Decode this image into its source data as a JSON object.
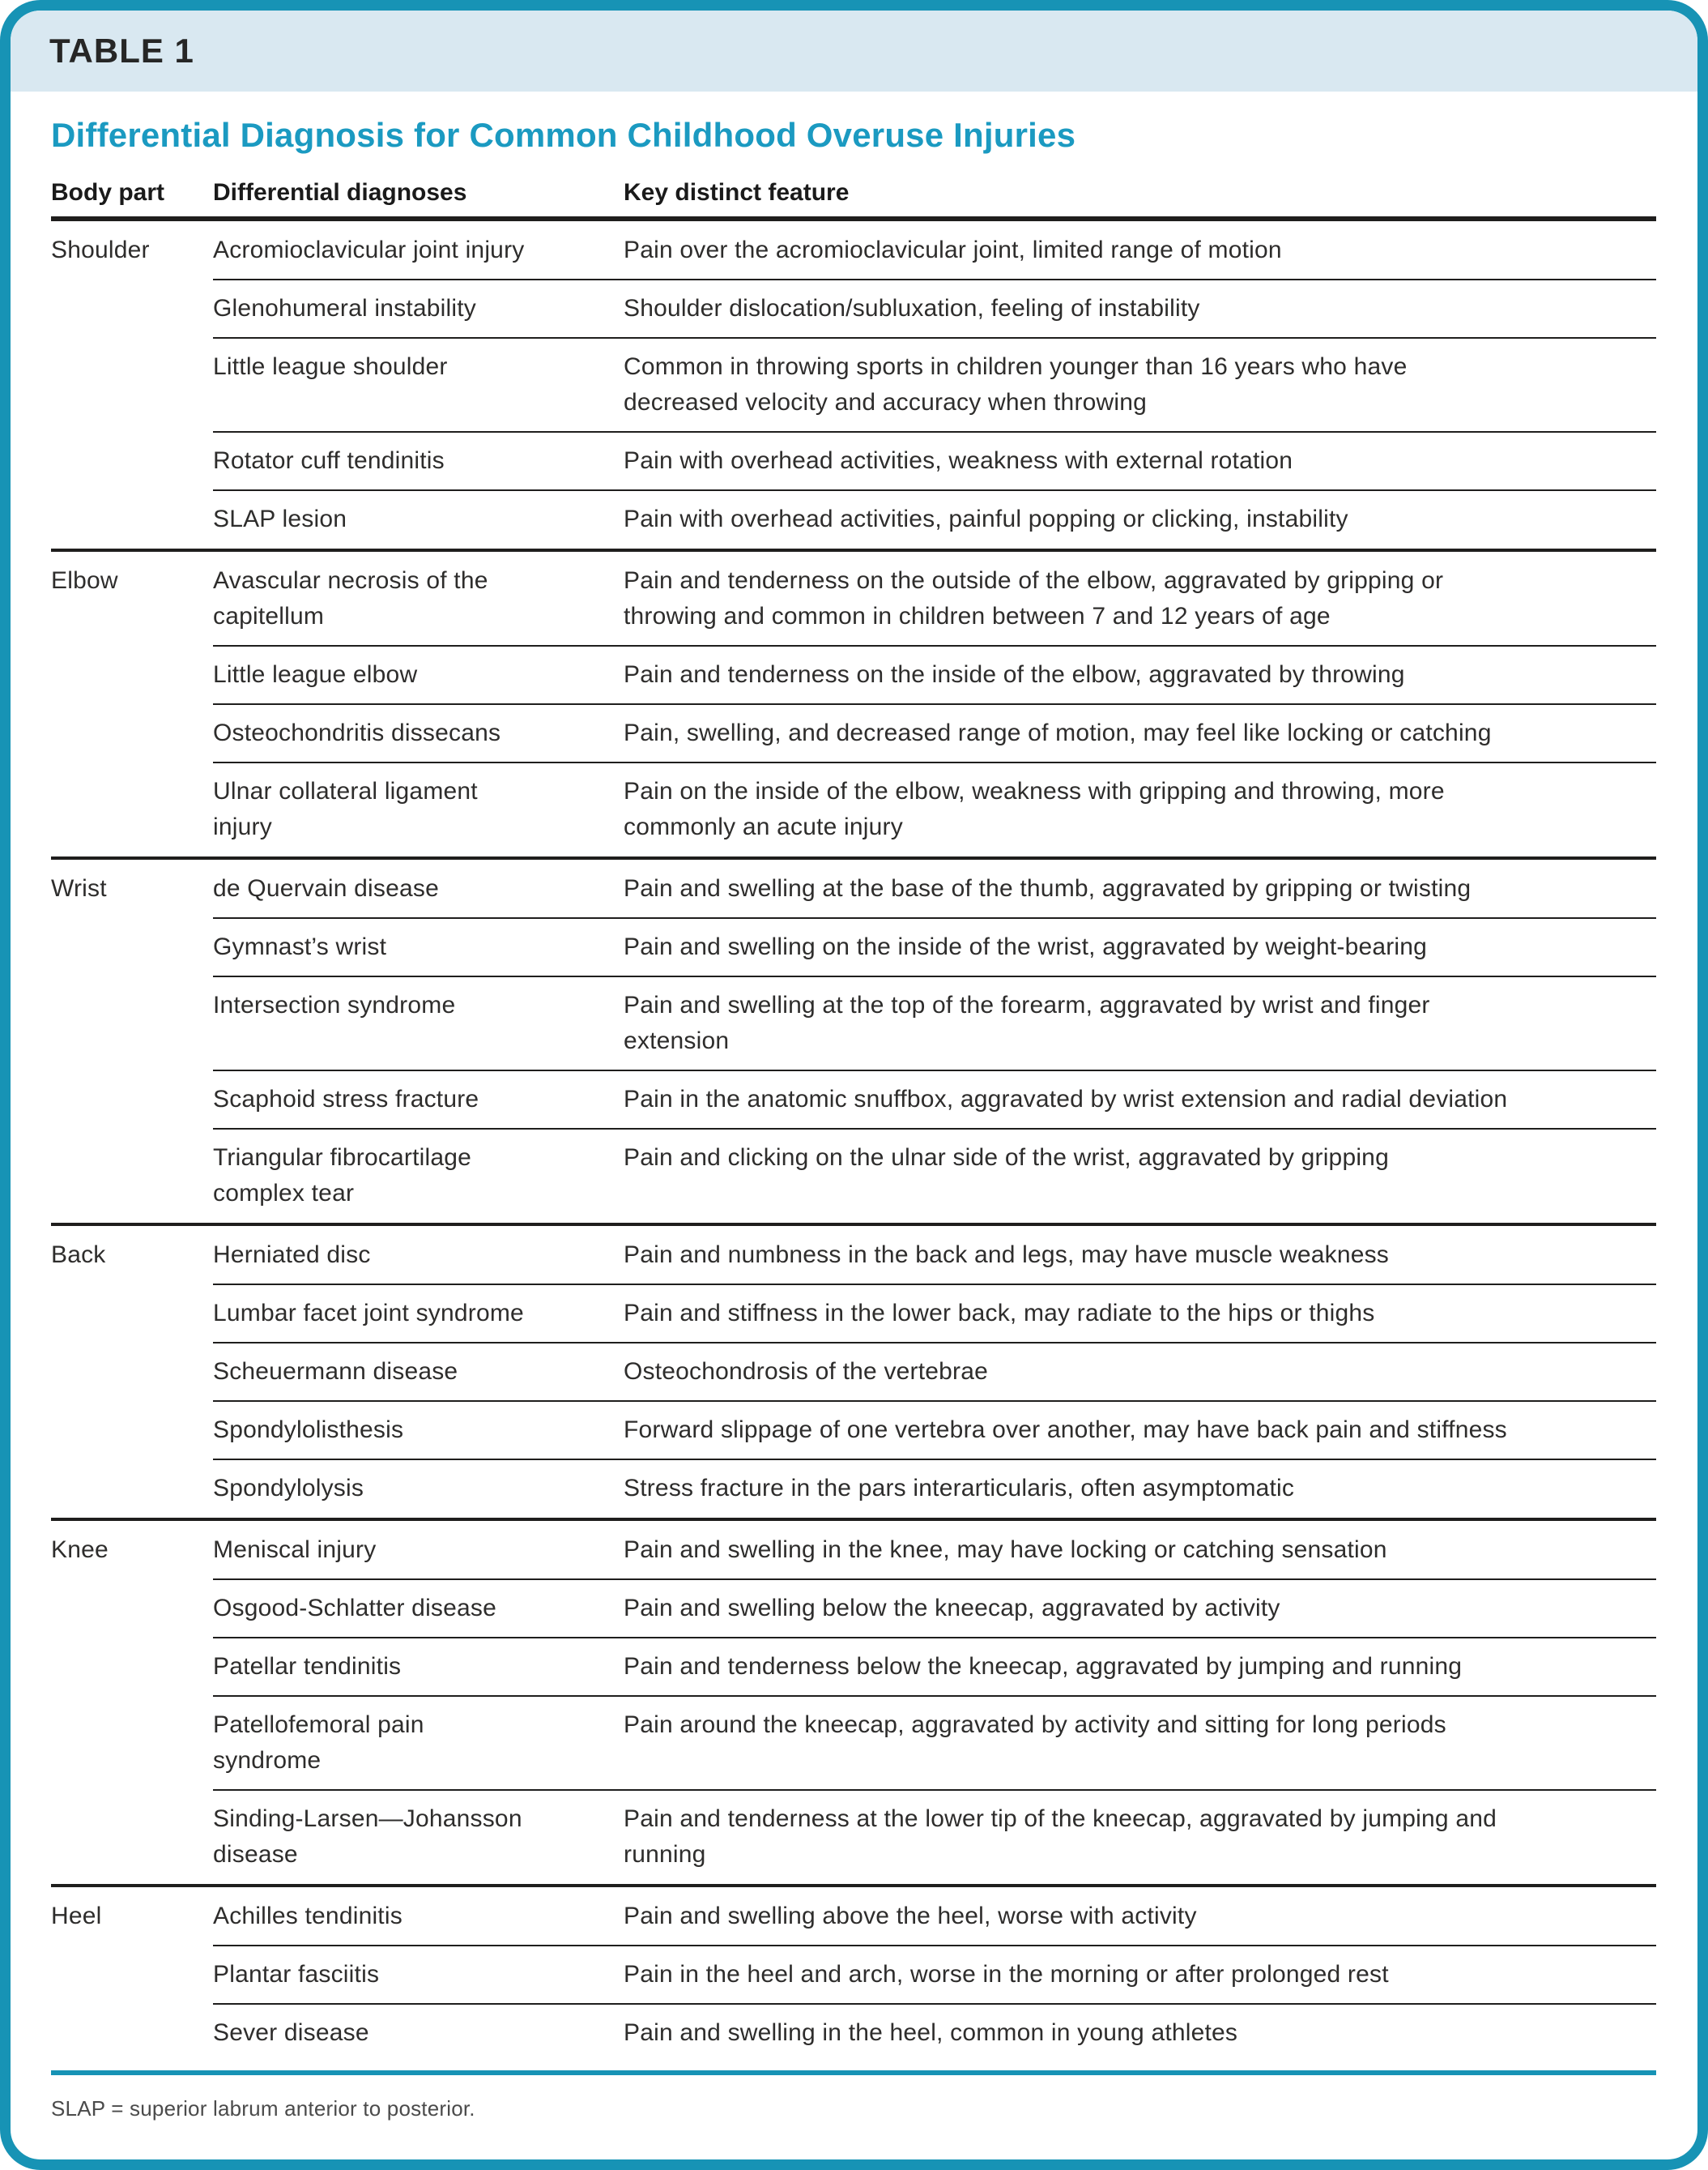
{
  "table_label": "TABLE 1",
  "title": "Differential Diagnosis for Common Childhood Overuse Injuries",
  "columns": [
    "Body part",
    "Differential diagnoses",
    "Key distinct feature"
  ],
  "sections": [
    {
      "body_part": "Shoulder",
      "rows": [
        {
          "diagnosis": "Acromioclavicular joint injury",
          "feature": "Pain over the acromioclavicular joint, limited range of motion"
        },
        {
          "diagnosis": "Glenohumeral instability",
          "feature": "Shoulder dislocation/subluxation, feeling of instability"
        },
        {
          "diagnosis": "Little league shoulder",
          "feature": "Common in throwing sports in children younger than 16 years who have\ndecreased velocity and accuracy when throwing"
        },
        {
          "diagnosis": "Rotator cuff tendinitis",
          "feature": "Pain with overhead activities, weakness with external rotation"
        },
        {
          "diagnosis": "SLAP lesion",
          "feature": "Pain with overhead activities, painful popping or clicking, instability"
        }
      ]
    },
    {
      "body_part": "Elbow",
      "rows": [
        {
          "diagnosis": "Avascular necrosis of the\ncapitellum",
          "feature": "Pain and tenderness on the outside of the elbow, aggravated by gripping or\nthrowing and common in children between 7 and 12 years of age"
        },
        {
          "diagnosis": "Little league elbow",
          "feature": "Pain and tenderness on the inside of the elbow, aggravated by throwing"
        },
        {
          "diagnosis": "Osteochondritis dissecans",
          "feature": "Pain, swelling, and decreased range of motion, may feel like locking or catching"
        },
        {
          "diagnosis": "Ulnar collateral ligament\ninjury",
          "feature": "Pain on the inside of the elbow, weakness with gripping and throwing, more\ncommonly an acute injury"
        }
      ]
    },
    {
      "body_part": "Wrist",
      "rows": [
        {
          "diagnosis": "de Quervain disease",
          "feature": "Pain and swelling at the base of the thumb, aggravated by gripping or twisting"
        },
        {
          "diagnosis": "Gymnast’s wrist",
          "feature": "Pain and swelling on the inside of the wrist, aggravated by weight-bearing"
        },
        {
          "diagnosis": "Intersection syndrome",
          "feature": "Pain and swelling at the top of the forearm, aggravated by wrist and finger\nextension"
        },
        {
          "diagnosis": "Scaphoid stress fracture",
          "feature": "Pain in the anatomic snuffbox, aggravated by wrist extension and radial deviation"
        },
        {
          "diagnosis": "Triangular fibrocartilage\ncomplex tear",
          "feature": "Pain and clicking on the ulnar side of the wrist, aggravated by gripping"
        }
      ]
    },
    {
      "body_part": "Back",
      "rows": [
        {
          "diagnosis": "Herniated disc",
          "feature": "Pain and numbness in the back and legs, may have muscle weakness"
        },
        {
          "diagnosis": "Lumbar facet joint syndrome",
          "feature": "Pain and stiffness in the lower back, may radiate to the hips or thighs"
        },
        {
          "diagnosis": "Scheuermann disease",
          "feature": "Osteochondrosis of the vertebrae"
        },
        {
          "diagnosis": "Spondylolisthesis",
          "feature": "Forward slippage of one vertebra over another, may have back pain and stiffness"
        },
        {
          "diagnosis": "Spondylolysis",
          "feature": "Stress fracture in the pars interarticularis, often asymptomatic"
        }
      ]
    },
    {
      "body_part": "Knee",
      "rows": [
        {
          "diagnosis": "Meniscal injury",
          "feature": "Pain and swelling in the knee, may have locking or catching sensation"
        },
        {
          "diagnosis": "Osgood-Schlatter disease",
          "feature": "Pain and swelling below the kneecap, aggravated by activity"
        },
        {
          "diagnosis": "Patellar tendinitis",
          "feature": "Pain and tenderness below the kneecap, aggravated by jumping and running"
        },
        {
          "diagnosis": "Patellofemoral pain\nsyndrome",
          "feature": "Pain around the kneecap, aggravated by activity and sitting for long periods"
        },
        {
          "diagnosis": "Sinding-Larsen—Johansson\ndisease",
          "feature": "Pain and tenderness at the lower tip of the kneecap, aggravated by jumping and\nrunning"
        }
      ]
    },
    {
      "body_part": "Heel",
      "rows": [
        {
          "diagnosis": "Achilles tendinitis",
          "feature": "Pain and swelling above the heel, worse with activity"
        },
        {
          "diagnosis": "Plantar fasciitis",
          "feature": "Pain in the heel and arch, worse in the morning or after prolonged rest"
        },
        {
          "diagnosis": "Sever disease",
          "feature": "Pain and swelling in the heel, common in young athletes"
        }
      ]
    }
  ],
  "footnote": "SLAP = superior labrum anterior to posterior.",
  "colors": {
    "accent": "#1793b5",
    "header_band": "#d9e8f1",
    "title": "#1b9ac1",
    "rule": "#1f1e1d"
  }
}
